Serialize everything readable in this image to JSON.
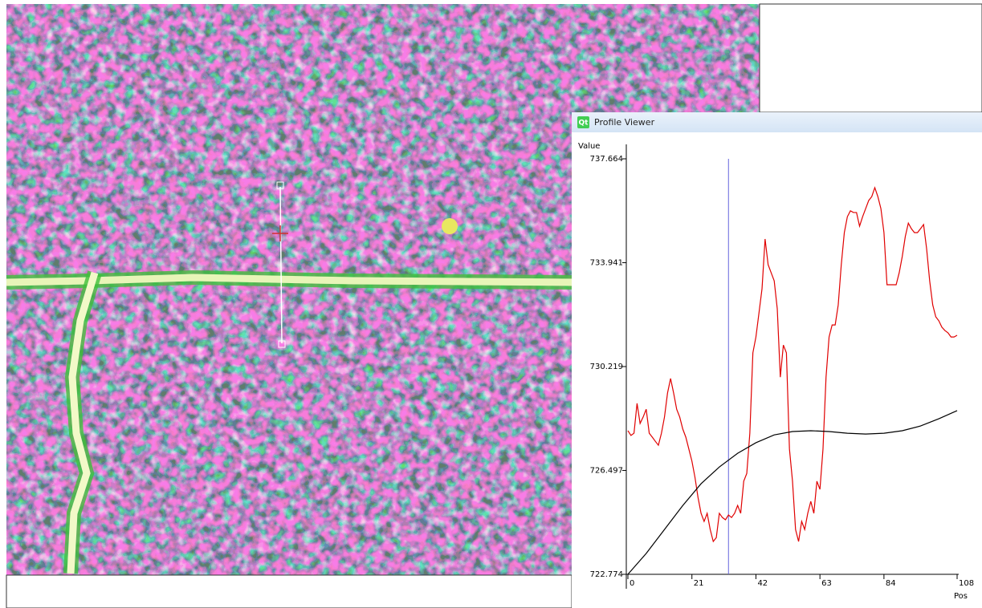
{
  "window": {
    "icon": "Qt",
    "title": "Profile Viewer"
  },
  "chart_data": {
    "type": "line",
    "y_label": "Value",
    "x_label": "Pos",
    "xlim": [
      0,
      108
    ],
    "ylim": [
      722.774,
      737.664
    ],
    "xticks": [
      0,
      21,
      42,
      63,
      84,
      108
    ],
    "yticks": [
      722.774,
      726.497,
      730.219,
      733.941,
      737.664
    ],
    "cursor_x": 33,
    "cursor_color": "#6666dd",
    "series": [
      {
        "color": "#e00000",
        "x": [
          0,
          1,
          2,
          3,
          4,
          5,
          6,
          7,
          8,
          9,
          10,
          11,
          12,
          13,
          14,
          15,
          16,
          17,
          18,
          19,
          20,
          21,
          22,
          23,
          24,
          25,
          26,
          27,
          28,
          29,
          30,
          31,
          32,
          33,
          34,
          35,
          36,
          37,
          38,
          39,
          40,
          41,
          42,
          43,
          44,
          45,
          46,
          47,
          48,
          49,
          50,
          51,
          52,
          53,
          54,
          55,
          56,
          57,
          58,
          59,
          60,
          61,
          62,
          63,
          64,
          65,
          66,
          67,
          68,
          69,
          70,
          71,
          72,
          73,
          74,
          75,
          76,
          77,
          78,
          79,
          80,
          81,
          82,
          83,
          84,
          85,
          86,
          87,
          88,
          89,
          90,
          91,
          92,
          93,
          94,
          95,
          96,
          97,
          98,
          99,
          100,
          101,
          102,
          103,
          104,
          105,
          106,
          107,
          108
        ],
        "values": [
          727.92,
          727.75,
          727.83,
          728.9,
          728.18,
          728.41,
          728.69,
          727.83,
          727.69,
          727.54,
          727.4,
          727.83,
          728.41,
          729.27,
          729.79,
          729.27,
          728.69,
          728.41,
          727.98,
          727.69,
          727.26,
          726.83,
          726.25,
          725.53,
          724.96,
          724.67,
          724.96,
          724.38,
          723.95,
          724.09,
          724.96,
          724.81,
          724.73,
          724.9,
          724.81,
          724.96,
          725.24,
          724.96,
          726.11,
          726.39,
          727.83,
          730.71,
          731.28,
          732.14,
          733.01,
          734.79,
          733.87,
          733.58,
          733.29,
          732.29,
          729.84,
          730.99,
          730.71,
          727.26,
          726.11,
          724.38,
          723.95,
          724.67,
          724.38,
          724.96,
          725.39,
          724.96,
          726.11,
          725.82,
          727.26,
          729.84,
          731.28,
          731.71,
          731.71,
          732.43,
          733.87,
          735.02,
          735.59,
          735.8,
          735.74,
          735.74,
          735.25,
          735.59,
          735.88,
          736.17,
          736.31,
          736.63,
          736.31,
          735.88,
          735.02,
          733.15,
          733.15,
          733.15,
          733.15,
          733.58,
          734.16,
          734.88,
          735.36,
          735.16,
          735.02,
          735.02,
          735.16,
          735.31,
          734.44,
          733.29,
          732.43,
          732.0,
          731.86,
          731.63,
          731.51,
          731.43,
          731.28,
          731.28,
          731.34
        ]
      },
      {
        "color": "#000000",
        "x": [
          0,
          6,
          12,
          18,
          24,
          30,
          36,
          42,
          48,
          54,
          60,
          66,
          72,
          78,
          84,
          90,
          96,
          102,
          108
        ],
        "values": [
          722.774,
          723.52,
          724.38,
          725.24,
          726.02,
          726.62,
          727.11,
          727.49,
          727.77,
          727.89,
          727.92,
          727.89,
          727.83,
          727.8,
          727.83,
          727.92,
          728.09,
          728.35,
          728.64
        ]
      }
    ]
  }
}
